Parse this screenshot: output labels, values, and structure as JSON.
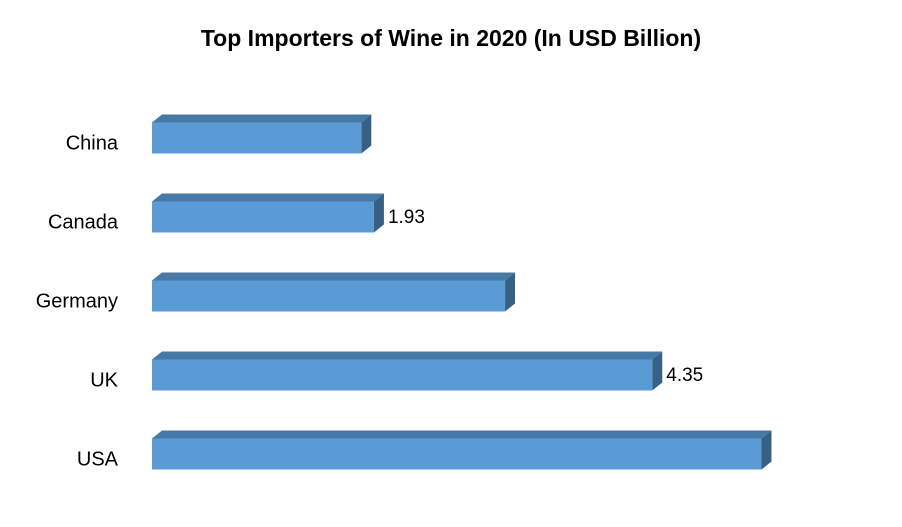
{
  "chart_data": {
    "type": "bar",
    "orientation": "horizontal",
    "title": "Top Importers of Wine in 2020 (In USD Billion)",
    "categories": [
      "China",
      "Canada",
      "Germany",
      "UK",
      "USA"
    ],
    "values": [
      1.82,
      1.93,
      3.07,
      4.35,
      5.3
    ],
    "show_value_label": [
      false,
      true,
      false,
      true,
      false
    ],
    "color": "#5b9bd5",
    "grid": false
  }
}
